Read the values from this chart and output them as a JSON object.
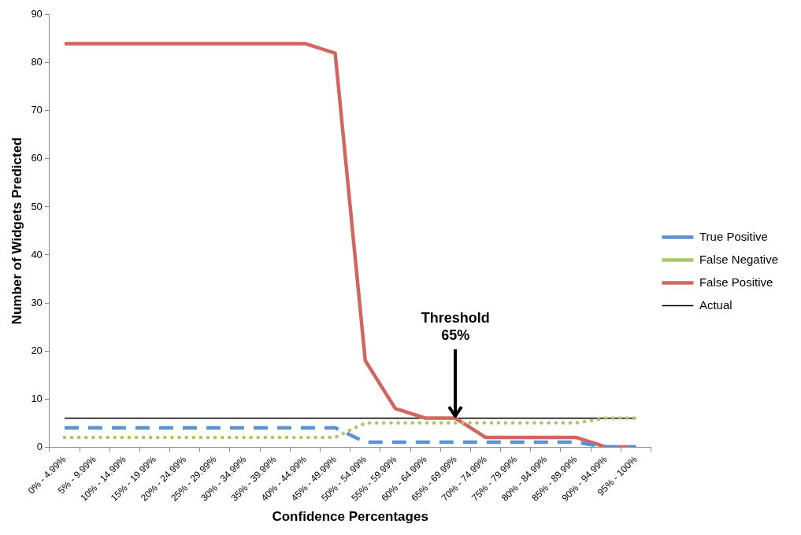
{
  "chart_data": {
    "type": "line",
    "categories": [
      "0% - 4.99%",
      "5% - 9.99%",
      "10% - 14.99%",
      "15% - 19.99%",
      "20% - 24.99%",
      "25% - 29.99%",
      "30% - 34.99%",
      "35% - 39.99%",
      "40% - 44.99%",
      "45% - 49.99%",
      "50% - 54.99%",
      "55% - 59.99%",
      "60% - 64.99%",
      "65% - 69.99%",
      "70% - 74.99%",
      "75% - 79.99%",
      "80% - 84.99%",
      "85% - 89.99%",
      "90% - 94.99%",
      "95% - 100%"
    ],
    "series": [
      {
        "name": "True Positive",
        "color": "#5b93cf",
        "line_style": "dashed",
        "values": [
          4,
          4,
          4,
          4,
          4,
          4,
          4,
          4,
          4,
          4,
          1,
          1,
          1,
          1,
          1,
          1,
          1,
          1,
          0,
          0
        ]
      },
      {
        "name": "False Negative",
        "color": "#a6c867",
        "line_style": "dotted",
        "values": [
          2,
          2,
          2,
          2,
          2,
          2,
          2,
          2,
          2,
          2,
          5,
          5,
          5,
          5,
          5,
          5,
          5,
          5,
          6,
          6
        ]
      },
      {
        "name": "False Positive",
        "color": "#d0665f",
        "line_style": "solid",
        "values": [
          84,
          84,
          84,
          84,
          84,
          84,
          84,
          84,
          84,
          82,
          18,
          8,
          6,
          6,
          2,
          2,
          2,
          2,
          0,
          0
        ]
      },
      {
        "name": "Actual",
        "color": "#000000",
        "line_style": "solid",
        "values": [
          6,
          6,
          6,
          6,
          6,
          6,
          6,
          6,
          6,
          6,
          6,
          6,
          6,
          6,
          6,
          6,
          6,
          6,
          6,
          6
        ]
      }
    ],
    "xlabel": "Confidence Percentages",
    "ylabel": "Number of Widgets Predicted",
    "ylim": [
      0,
      90
    ],
    "yticks": [
      0,
      10,
      20,
      30,
      40,
      50,
      60,
      70,
      80,
      90
    ],
    "annotations": [
      {
        "text": "Threshold\n65%",
        "x": "65% - 69.99%",
        "y": 6
      }
    ],
    "grid": false,
    "legend": "right",
    "marker": "none"
  }
}
